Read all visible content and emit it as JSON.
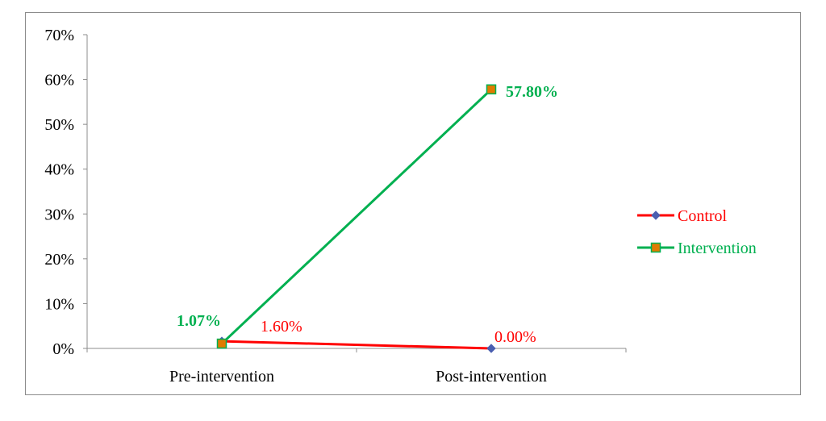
{
  "chart_data": {
    "type": "line",
    "title": "",
    "xlabel": "",
    "ylabel": "",
    "categories": [
      "Pre-intervention",
      "Post-intervention"
    ],
    "ylim": [
      0,
      70
    ],
    "y_ticks": [
      0,
      10,
      20,
      30,
      40,
      50,
      60,
      70
    ],
    "y_tick_labels": [
      "0%",
      "10%",
      "20%",
      "30%",
      "40%",
      "50%",
      "60%",
      "70%"
    ],
    "grid": false,
    "legend_position": "right",
    "series": [
      {
        "name": "Control",
        "color": "#ff0000",
        "marker": "diamond",
        "marker_color": "#4a5fb0",
        "values": [
          1.6,
          0.0
        ],
        "labels": [
          "1.60%",
          "0.00%"
        ],
        "label_bold": false
      },
      {
        "name": "Intervention",
        "color": "#00b050",
        "marker": "square",
        "marker_color": "#e07b00",
        "values": [
          1.07,
          57.8
        ],
        "labels": [
          "1.07%",
          "57.80%"
        ],
        "label_bold": true
      }
    ]
  }
}
